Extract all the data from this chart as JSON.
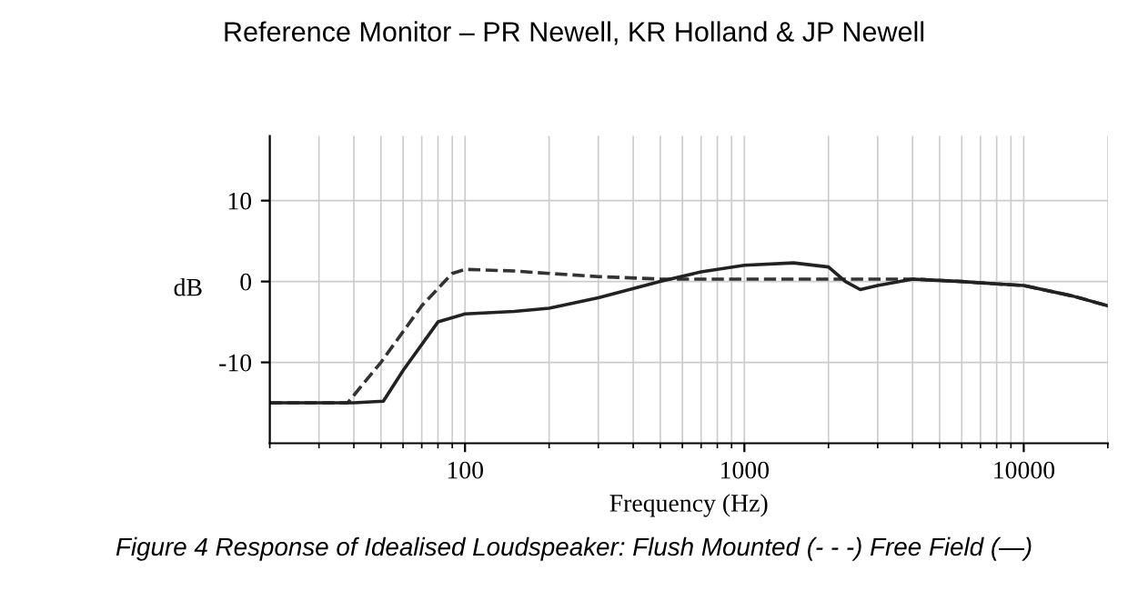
{
  "chart_data": {
    "type": "line",
    "title": "Reference Monitor – PR Newell, KR Holland & JP Newell",
    "xlabel": "Frequency (Hz)",
    "ylabel": "dB",
    "annotations": [
      "Figure 4 Response of Idealised Loudspeaker: Flush Mounted (- - -) Free Field (—)"
    ],
    "log": "x",
    "xlim": [
      20,
      20000
    ],
    "ylim": [
      -20,
      18
    ],
    "xticks": [
      100,
      1000,
      10000
    ],
    "yticks": [
      -10,
      0,
      10
    ],
    "grid": true,
    "legend": false,
    "series": [
      {
        "color": "#333333",
        "line_style": "dashed",
        "x": [
          20,
          30,
          38,
          50,
          70,
          90,
          100,
          150,
          200,
          300,
          500,
          1000,
          2000,
          3000,
          4000,
          6000,
          8000,
          10000,
          15000,
          20000
        ],
        "values": [
          -15,
          -15,
          -15,
          -10,
          -3,
          1,
          1.5,
          1.3,
          1,
          0.6,
          0.3,
          0.3,
          0.3,
          0.3,
          0.3,
          0,
          -0.3,
          -0.5,
          -1.8,
          -3
        ]
      },
      {
        "color": "#222222",
        "line_style": "solid",
        "x": [
          20,
          30,
          40,
          51,
          60,
          80,
          100,
          150,
          200,
          300,
          500,
          700,
          1000,
          1500,
          2000,
          2300,
          2600,
          3000,
          4000,
          6000,
          8000,
          10000,
          15000,
          20000
        ],
        "values": [
          -15,
          -15,
          -15,
          -14.8,
          -11,
          -5,
          -4,
          -3.7,
          -3.3,
          -2,
          0,
          1.2,
          2,
          2.3,
          1.8,
          0,
          -1,
          -0.5,
          0.3,
          0,
          -0.3,
          -0.5,
          -1.8,
          -3
        ]
      }
    ]
  }
}
